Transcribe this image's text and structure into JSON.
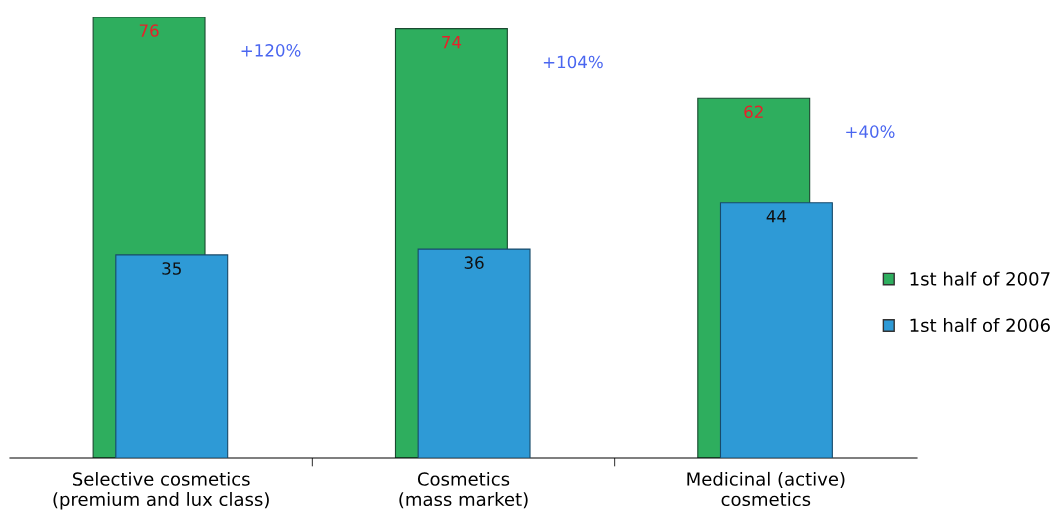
{
  "chart_data": {
    "type": "bar",
    "categories": [
      "Selective cosmetics\n(premium and lux class)",
      "Cosmetics\n(mass market)",
      "Medicinal (active)\ncosmetics"
    ],
    "series": [
      {
        "name": "1st half of 2007",
        "color": "#2eae5e",
        "values": [
          76,
          74,
          62
        ]
      },
      {
        "name": "1st half of 2006",
        "color": "#2e9ad6",
        "values": [
          35,
          36,
          44
        ]
      }
    ],
    "ylim": [
      0,
      76
    ],
    "tick_labels": "x",
    "data_labels": true,
    "legend": "right",
    "grid": false,
    "annotations": [
      "+120%",
      "+104%",
      "+40%"
    ]
  }
}
